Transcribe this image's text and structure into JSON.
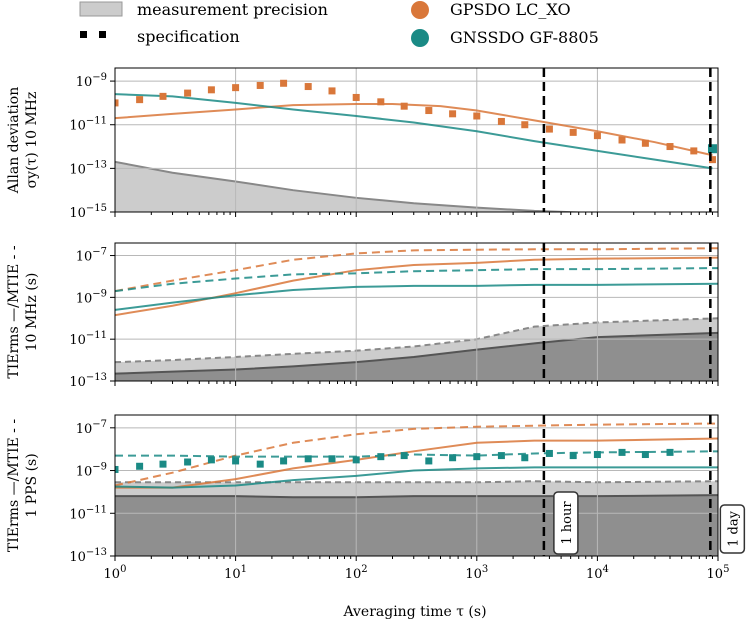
{
  "legend": {
    "precision_label": "measurement precision",
    "spec_label": "specification",
    "gpsdo_label": "GPSDO LC_XO",
    "gnss_label": "GNSSDO GF-8805"
  },
  "colors": {
    "gpsdo": "#d9773a",
    "gnss": "#1a8a85",
    "precision_fill": "#cccccc",
    "precision_dark": "#8f8f8f",
    "grid": "#b8b8b8"
  },
  "chart_data": {
    "type": "line",
    "x_label": "Averaging time τ (s)",
    "xlim": [
      1,
      100000
    ],
    "x_ticks": [
      "10^0",
      "10^1",
      "10^2",
      "10^3",
      "10^4",
      "10^5"
    ],
    "markers": [
      {
        "label": "1 hour",
        "x": 3600
      },
      {
        "label": "1 day",
        "x": 86400
      }
    ],
    "panels": [
      {
        "name": "adev",
        "ylabel_lines": [
          "Allan deviation",
          "σy(τ) 10 MHz"
        ],
        "ylim_exp": [
          -15,
          -8.4
        ],
        "y_ticks": [
          "10^-9",
          "10^-11",
          "10^-13",
          "10^-15"
        ],
        "series": [
          {
            "name": "GPSDO LC_XO",
            "style": "solid",
            "x": [
              1,
              3,
              10,
              30,
              100,
              200,
              500,
              1000,
              3000,
              10000,
              30000,
              90000
            ],
            "y_exp": [
              -10.7,
              -10.5,
              -10.3,
              -10.1,
              -10.05,
              -10.05,
              -10.15,
              -10.35,
              -10.8,
              -11.3,
              -11.8,
              -12.4
            ]
          },
          {
            "name": "GNSSDO GF-8805",
            "style": "solid",
            "x": [
              1,
              3,
              10,
              30,
              100,
              300,
              1000,
              3000,
              10000,
              30000,
              90000
            ],
            "y_exp": [
              -9.6,
              -9.7,
              -10.0,
              -10.3,
              -10.6,
              -10.9,
              -11.3,
              -11.75,
              -12.2,
              -12.6,
              -13.0
            ]
          },
          {
            "name": "GPSDO spec",
            "style": "dots",
            "x": [
              1,
              1.6,
              2.5,
              4,
              6.3,
              10,
              16,
              25,
              40,
              63,
              100,
              160,
              250,
              400,
              630,
              1000,
              1600,
              2500,
              4000,
              6300,
              10000,
              16000,
              25000,
              40000,
              63000,
              90000
            ],
            "y_exp": [
              -10.0,
              -9.85,
              -9.7,
              -9.55,
              -9.4,
              -9.3,
              -9.2,
              -9.1,
              -9.25,
              -9.45,
              -9.75,
              -9.95,
              -10.15,
              -10.35,
              -10.5,
              -10.6,
              -10.85,
              -11.0,
              -11.2,
              -11.35,
              -11.5,
              -11.7,
              -11.85,
              -12.0,
              -12.2,
              -12.6
            ]
          },
          {
            "name": "GNSSDO spec",
            "style": "dots",
            "x": [
              90000
            ],
            "y_exp": [
              -12.1
            ]
          },
          {
            "name": "precision",
            "style": "area",
            "x": [
              1,
              3,
              10,
              30,
              100,
              300,
              1000,
              3000,
              10000,
              30000,
              100000
            ],
            "y_exp": [
              -12.7,
              -13.2,
              -13.6,
              -14.0,
              -14.35,
              -14.6,
              -14.8,
              -14.95,
              -15.05,
              -15.15,
              -15.2
            ]
          }
        ]
      },
      {
        "name": "tie10",
        "ylabel_lines": [
          "TIErms —/MTIE - -",
          "10 MHz  (s)"
        ],
        "ylim_exp": [
          -13,
          -6.4
        ],
        "y_ticks": [
          "10^-7",
          "10^-9",
          "10^-11",
          "10^-13"
        ],
        "series": [
          {
            "name": "GPSDO rms",
            "style": "solid",
            "x": [
              1,
              3,
              10,
              30,
              100,
              300,
              1000,
              3000,
              10000,
              100000
            ],
            "y_exp": [
              -9.85,
              -9.4,
              -8.8,
              -8.2,
              -7.7,
              -7.45,
              -7.35,
              -7.2,
              -7.15,
              -7.1
            ]
          },
          {
            "name": "GPSDO mtie",
            "style": "dashed",
            "x": [
              1,
              3,
              10,
              30,
              100,
              300,
              1000,
              3000,
              10000,
              100000
            ],
            "y_exp": [
              -8.7,
              -8.2,
              -7.7,
              -7.2,
              -6.9,
              -6.75,
              -6.72,
              -6.7,
              -6.7,
              -6.65
            ]
          },
          {
            "name": "GNSS rms",
            "style": "solid",
            "x": [
              1,
              3,
              10,
              30,
              100,
              300,
              1000,
              3000,
              10000,
              100000
            ],
            "y_exp": [
              -9.6,
              -9.25,
              -8.9,
              -8.65,
              -8.5,
              -8.45,
              -8.45,
              -8.4,
              -8.4,
              -8.35
            ]
          },
          {
            "name": "GNSS mtie",
            "style": "dashed",
            "x": [
              1,
              3,
              10,
              30,
              100,
              300,
              1000,
              3000,
              10000,
              100000
            ],
            "y_exp": [
              -8.7,
              -8.35,
              -8.1,
              -7.9,
              -7.85,
              -7.75,
              -7.7,
              -7.65,
              -7.65,
              -7.6
            ]
          },
          {
            "name": "precision mtie",
            "style": "area-light",
            "x": [
              1,
              3,
              10,
              30,
              100,
              300,
              1000,
              3000,
              10000,
              100000
            ],
            "y_exp": [
              -12.1,
              -12.0,
              -11.85,
              -11.7,
              -11.55,
              -11.35,
              -11.0,
              -10.4,
              -10.2,
              -10.0
            ]
          },
          {
            "name": "precision rms",
            "style": "area-dark",
            "x": [
              1,
              3,
              10,
              30,
              100,
              300,
              1000,
              3000,
              10000,
              100000
            ],
            "y_exp": [
              -12.65,
              -12.55,
              -12.45,
              -12.3,
              -12.1,
              -11.85,
              -11.5,
              -11.2,
              -10.9,
              -10.7
            ]
          }
        ]
      },
      {
        "name": "tie1pps",
        "ylabel_lines": [
          "TIErms —/MTIE - -",
          "1 PPS  (s)"
        ],
        "ylim_exp": [
          -13,
          -6.4
        ],
        "y_ticks": [
          "10^-7",
          "10^-9",
          "10^-11",
          "10^-13"
        ],
        "series": [
          {
            "name": "GPSDO rms",
            "style": "solid",
            "x": [
              1,
              3,
              10,
              30,
              100,
              300,
              1000,
              3000,
              10000,
              100000
            ],
            "y_exp": [
              -9.8,
              -9.8,
              -9.4,
              -8.9,
              -8.5,
              -8.1,
              -7.7,
              -7.6,
              -7.6,
              -7.5
            ]
          },
          {
            "name": "GPSDO mtie",
            "style": "dashed",
            "x": [
              1,
              3,
              10,
              30,
              100,
              300,
              1000,
              3000,
              10000,
              100000
            ],
            "y_exp": [
              -9.7,
              -9.1,
              -8.3,
              -7.7,
              -7.3,
              -7.05,
              -6.95,
              -6.9,
              -6.85,
              -6.8
            ]
          },
          {
            "name": "GNSS rms",
            "style": "solid",
            "x": [
              1,
              3,
              10,
              30,
              100,
              300,
              1000,
              3000,
              10000,
              100000
            ],
            "y_exp": [
              -9.75,
              -9.8,
              -9.7,
              -9.45,
              -9.25,
              -9.0,
              -8.9,
              -8.85,
              -8.85,
              -8.85
            ]
          },
          {
            "name": "GNSS mtie",
            "style": "dashed",
            "x": [
              1,
              3,
              10,
              30,
              100,
              300,
              1000,
              3000,
              10000,
              100000
            ],
            "y_exp": [
              -8.3,
              -8.3,
              -8.35,
              -8.35,
              -8.35,
              -8.25,
              -8.3,
              -8.2,
              -8.15,
              -8.1
            ]
          },
          {
            "name": "GNSS spec",
            "style": "dots",
            "x": [
              1,
              1.6,
              2.5,
              4,
              6.3,
              10,
              16,
              25,
              40,
              63,
              100,
              160,
              250,
              400,
              630,
              1000,
              1600,
              2500,
              4000,
              6300,
              10000,
              16000,
              25000,
              40000
            ],
            "y_exp": [
              -8.95,
              -8.8,
              -8.7,
              -8.6,
              -8.5,
              -8.55,
              -8.7,
              -8.55,
              -8.45,
              -8.45,
              -8.5,
              -8.35,
              -8.3,
              -8.55,
              -8.4,
              -8.35,
              -8.3,
              -8.4,
              -8.2,
              -8.3,
              -8.25,
              -8.15,
              -8.25,
              -8.15
            ]
          },
          {
            "name": "precision mtie",
            "style": "area-light",
            "x": [
              1,
              3,
              10,
              30,
              100,
              300,
              1000,
              3000,
              10000,
              100000
            ],
            "y_exp": [
              -9.55,
              -9.55,
              -9.55,
              -9.55,
              -9.55,
              -9.55,
              -9.55,
              -9.5,
              -9.55,
              -9.5
            ]
          },
          {
            "name": "precision rms",
            "style": "area-dark",
            "x": [
              1,
              3,
              10,
              30,
              100,
              300,
              1000,
              3000,
              10000,
              100000
            ],
            "y_exp": [
              -10.2,
              -10.2,
              -10.2,
              -10.25,
              -10.25,
              -10.2,
              -10.2,
              -10.2,
              -10.2,
              -10.15
            ]
          }
        ]
      }
    ]
  }
}
